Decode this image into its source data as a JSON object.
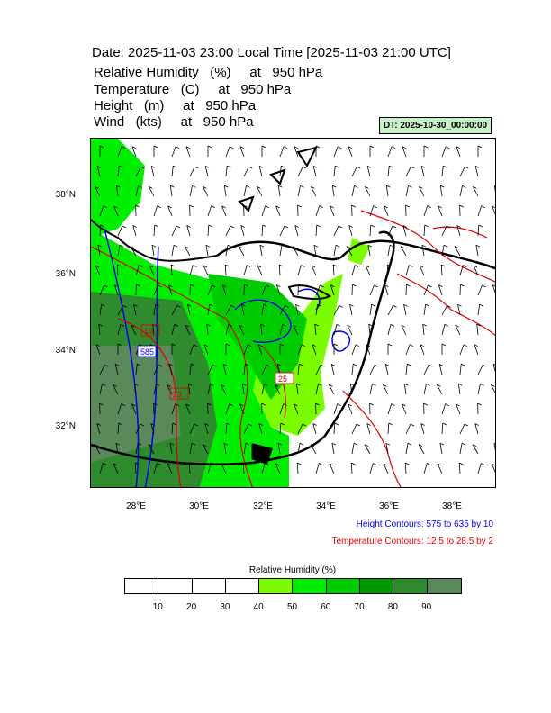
{
  "header": {
    "title": "Date: 2025-11-03  23:00 Local Time [2025-11-03  21:00 UTC]",
    "variables": [
      "Relative Humidity   (%)     at   950 hPa",
      "Temperature   (C)     at   950 hPa",
      "Height   (m)     at   950 hPa",
      "Wind   (kts)     at   950 hPa"
    ],
    "dt_badge": "DT: 2025-10-30_00:00:00"
  },
  "map": {
    "lat_labels": [
      "38°N",
      "36°N",
      "34°N",
      "32°N"
    ],
    "lon_labels": [
      "28°E",
      "30°E",
      "32°E",
      "34°E",
      "36°E",
      "38°E"
    ],
    "contour_labels": {
      "height_label": "585",
      "temp_label_a": "25",
      "temp_label_b": "23",
      "temp_label_c": "19"
    },
    "colors": {
      "coastline": "#000000",
      "height_contour": "#0000ee",
      "temperature_contour": "#dd0000",
      "wind_barb": "#000000"
    }
  },
  "captions": {
    "height": "Height Contours: 575 to 635 by 10",
    "temperature": "Temperature Contours: 12.5 to 28.5 by 2"
  },
  "colorbar": {
    "title": "Relative Humidity  (%)",
    "labels": [
      "10",
      "20",
      "30",
      "40",
      "50",
      "60",
      "70",
      "80",
      "90"
    ],
    "colors": [
      "#ffffff",
      "#ffffff",
      "#ffffff",
      "#ffffff",
      "#7cfc00",
      "#00ee00",
      "#00cd00",
      "#009a00",
      "#2e8b2e",
      "#5a8a5a"
    ]
  }
}
